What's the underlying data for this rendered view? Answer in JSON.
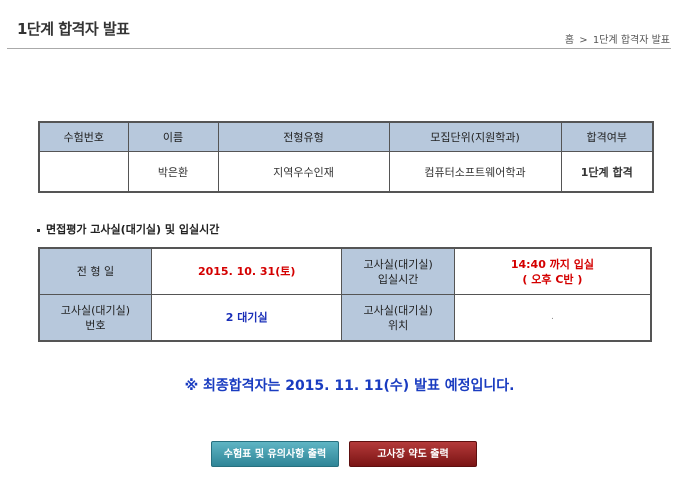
{
  "header": {
    "title": "1단계 합격자 발표",
    "breadcrumb": {
      "home": "홈",
      "separator": ">",
      "current": "1단계 합격자 발표"
    }
  },
  "result_table": {
    "headers": [
      "수험번호",
      "이름",
      "전형유형",
      "모집단위(지원학과)",
      "합격여부"
    ],
    "row": {
      "exam_number": "",
      "name": "박은환",
      "admission_type": "지역우수인재",
      "department": "컴퓨터소프트웨어학과",
      "status": "1단계 합격"
    }
  },
  "interview": {
    "section_title": "면접평가 고사실(대기실) 및 입실시간",
    "date_label": "전 형 일",
    "date_value": "2015. 10. 31(토)",
    "entry_label_1": "고사실(대기실)",
    "entry_label_2": "입실시간",
    "entry_time": "14:40 까지 입실",
    "entry_group": "( 오후 C반 )",
    "room_label_1": "고사실(대기실)",
    "room_label_2": "번호",
    "room_value": "2 대기실",
    "location_label_1": "고사실(대기실)",
    "location_label_2": "위치",
    "location_value": "."
  },
  "notice": "※ 최종합격자는 2015. 11. 11(수) 발표 예정입니다.",
  "buttons": {
    "print_ticket": "수험표 및 유의사항 출력",
    "print_map": "고사장 약도 출력"
  },
  "colors": {
    "header_cell": "#b7c8dc",
    "highlight_red": "#d40000",
    "highlight_blue": "#1a2fb8",
    "button_teal": "#2f8597",
    "button_red": "#7a1414"
  }
}
